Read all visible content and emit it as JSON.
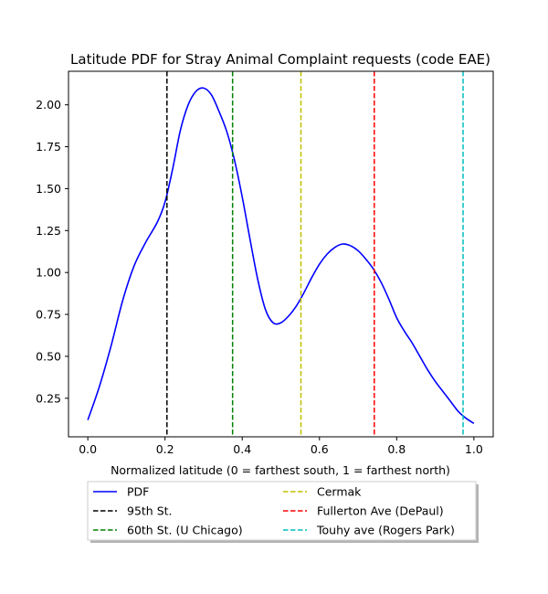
{
  "chart_data": {
    "type": "line",
    "title": "Latitude PDF for Stray Animal Complaint  requests (code EAE)",
    "xlabel": "Normalized latitude (0 = farthest south, 1 = farthest north)",
    "ylabel": "",
    "xlim": [
      -0.05,
      1.05
    ],
    "ylim": [
      0.02,
      2.2
    ],
    "x_ticks": [
      0.0,
      0.2,
      0.4,
      0.6,
      0.8,
      1.0
    ],
    "x_tick_labels": [
      "0.0",
      "0.2",
      "0.4",
      "0.6",
      "0.8",
      "1.0"
    ],
    "y_ticks": [
      0.25,
      0.5,
      0.75,
      1.0,
      1.25,
      1.5,
      1.75,
      2.0
    ],
    "y_tick_labels": [
      "0.25",
      "0.50",
      "0.75",
      "1.00",
      "1.25",
      "1.50",
      "1.75",
      "2.00"
    ],
    "grid": false,
    "legend_placement": "below plot, two columns",
    "series": [
      {
        "name": "PDF",
        "color": "#0000ff",
        "style": "solid",
        "x": [
          0.0,
          0.03,
          0.06,
          0.09,
          0.12,
          0.15,
          0.18,
          0.2,
          0.22,
          0.24,
          0.26,
          0.28,
          0.3,
          0.32,
          0.34,
          0.36,
          0.38,
          0.4,
          0.42,
          0.44,
          0.46,
          0.48,
          0.5,
          0.52,
          0.54,
          0.56,
          0.58,
          0.6,
          0.62,
          0.64,
          0.66,
          0.68,
          0.7,
          0.72,
          0.74,
          0.76,
          0.78,
          0.8,
          0.82,
          0.84,
          0.86,
          0.88,
          0.9,
          0.92,
          0.94,
          0.96,
          0.98,
          1.0
        ],
        "y": [
          0.12,
          0.32,
          0.56,
          0.83,
          1.04,
          1.18,
          1.3,
          1.42,
          1.62,
          1.85,
          2.0,
          2.08,
          2.1,
          2.06,
          1.96,
          1.84,
          1.67,
          1.45,
          1.2,
          0.96,
          0.78,
          0.7,
          0.7,
          0.74,
          0.8,
          0.88,
          0.97,
          1.05,
          1.11,
          1.15,
          1.17,
          1.16,
          1.13,
          1.08,
          1.02,
          0.94,
          0.84,
          0.73,
          0.65,
          0.58,
          0.5,
          0.42,
          0.35,
          0.29,
          0.23,
          0.17,
          0.13,
          0.1
        ]
      },
      {
        "name": "95th St.",
        "color": "#000000",
        "style": "dashed",
        "vline_x": 0.205
      },
      {
        "name": "60th St. (U Chicago)",
        "color": "#008000",
        "style": "dashed",
        "vline_x": 0.375
      },
      {
        "name": "Cermak",
        "color": "#bfbf00",
        "style": "dashed",
        "vline_x": 0.552
      },
      {
        "name": "Fullerton Ave (DePaul)",
        "color": "#ff0000",
        "style": "dashed",
        "vline_x": 0.742
      },
      {
        "name": "Touhy ave (Rogers Park)",
        "color": "#00bfbf",
        "style": "dashed",
        "vline_x": 0.972
      }
    ]
  }
}
